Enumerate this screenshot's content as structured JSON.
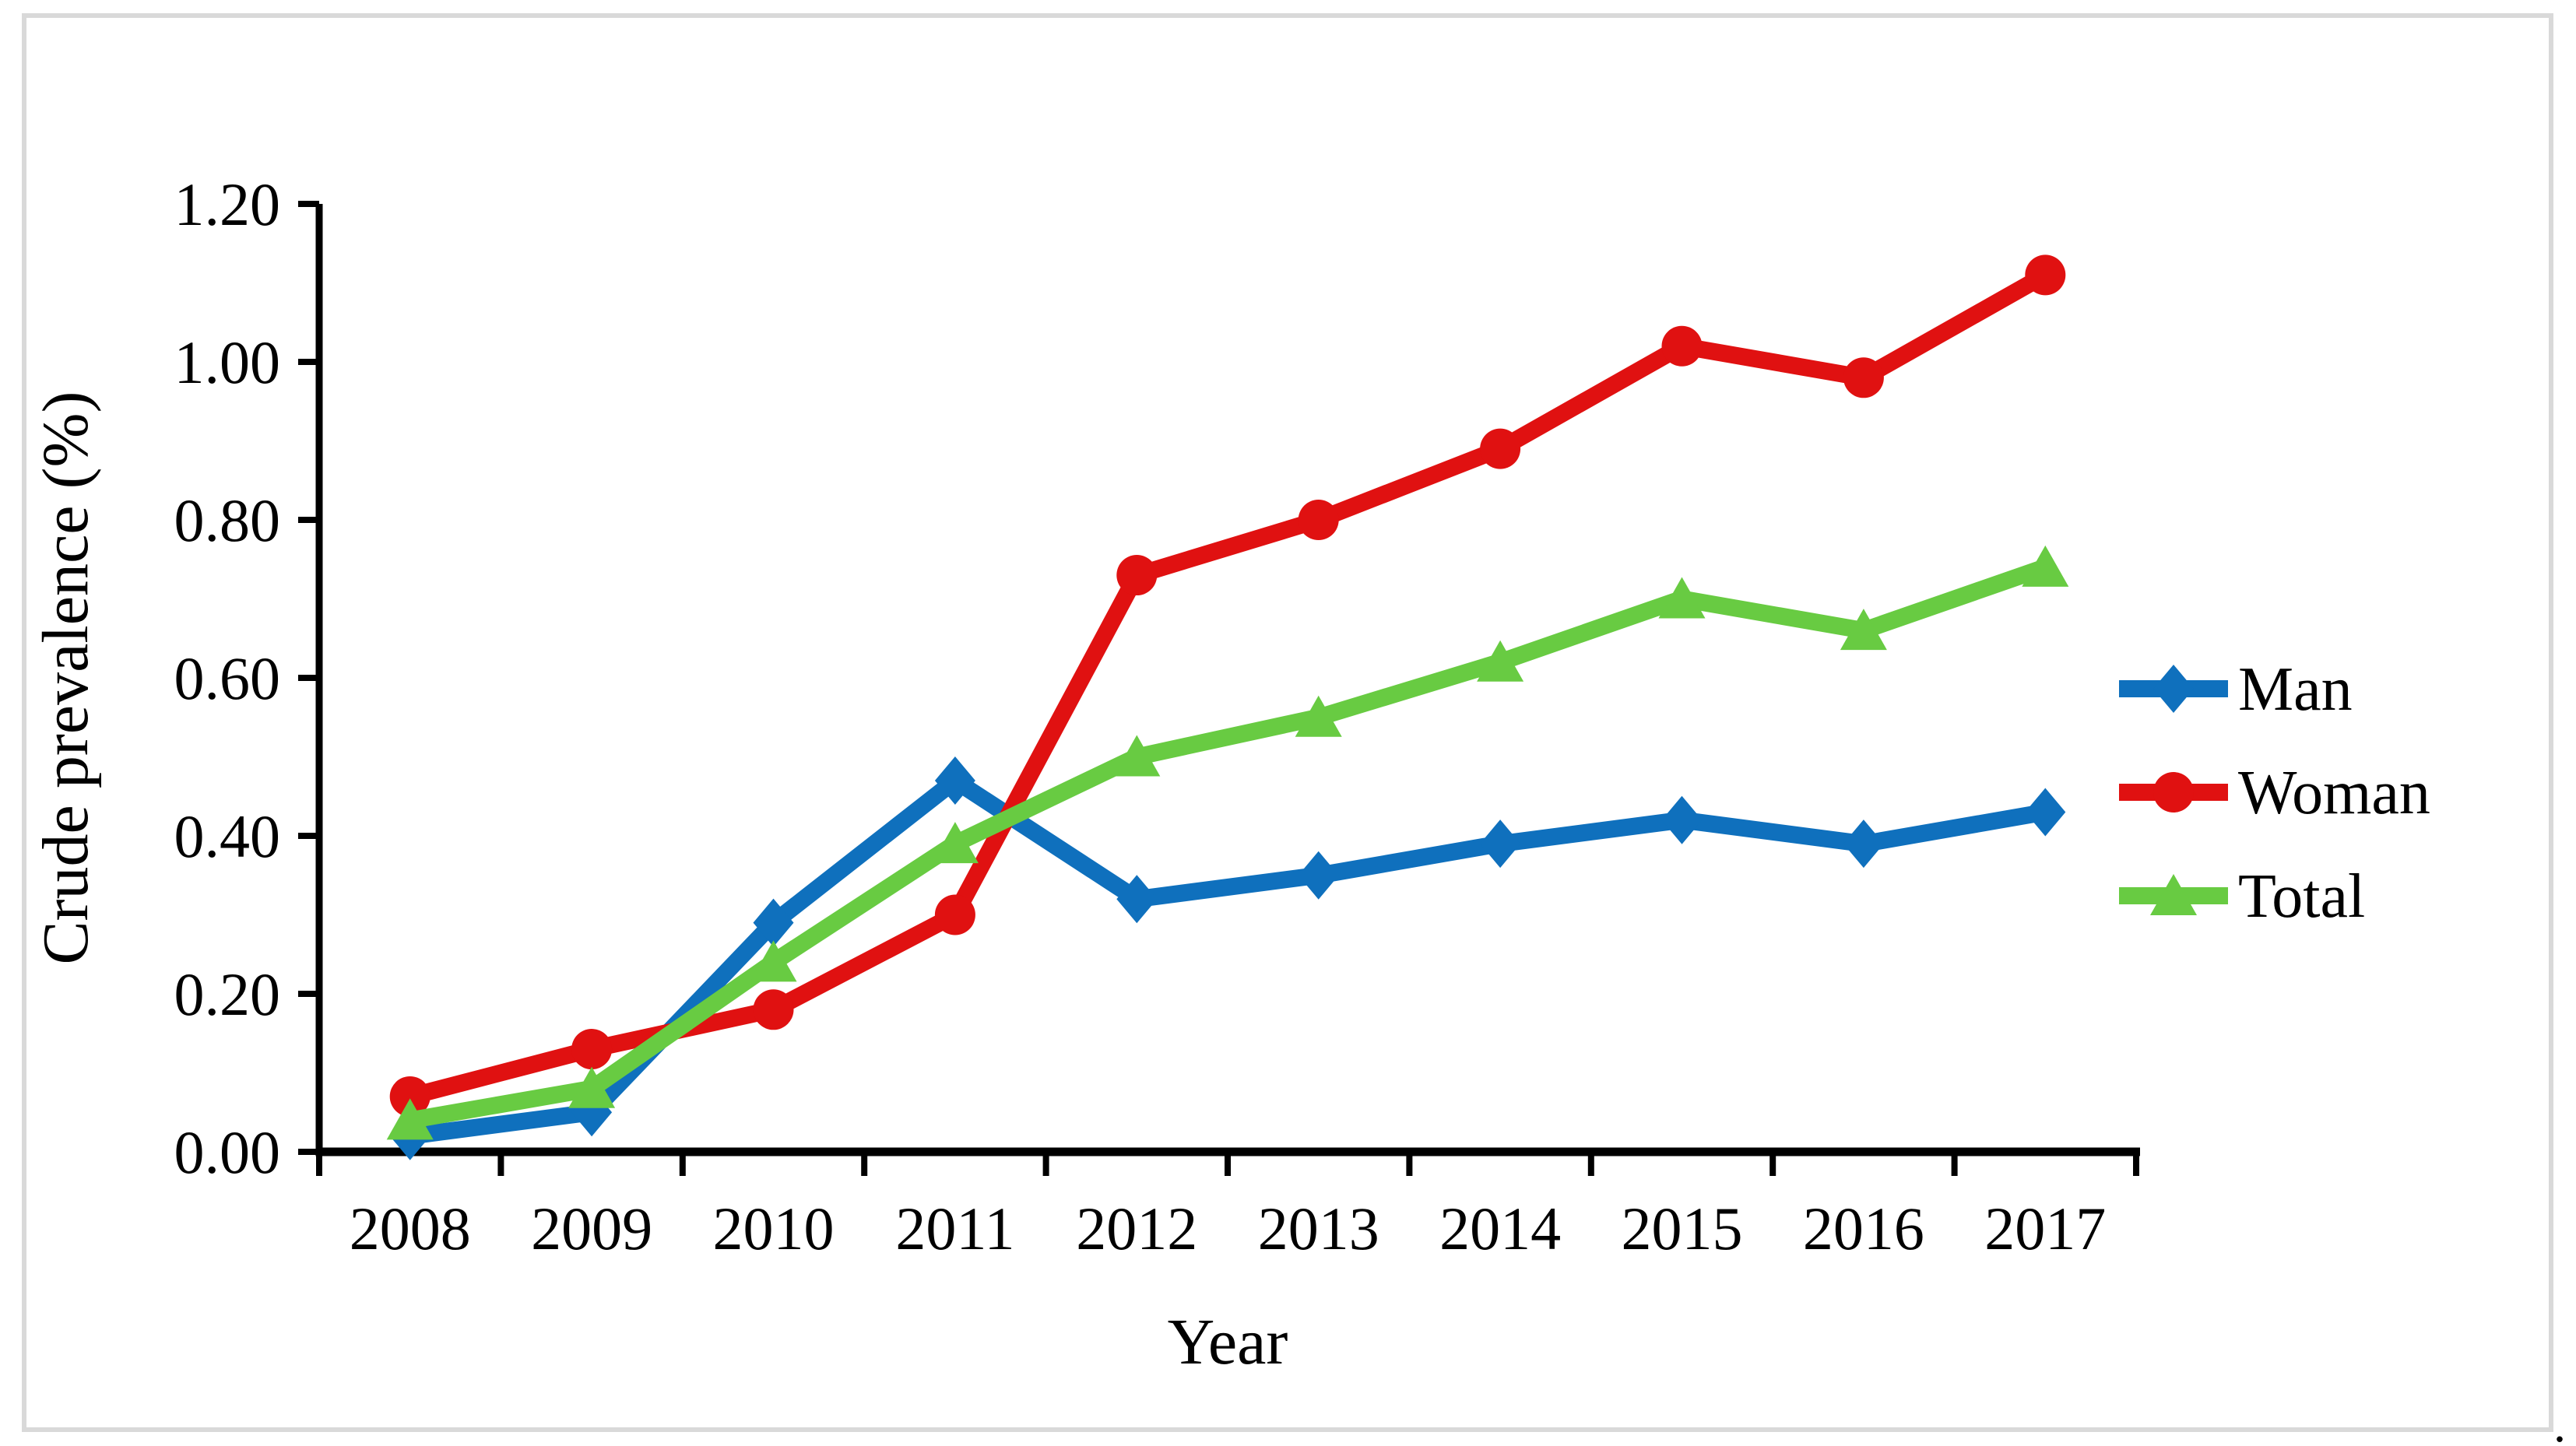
{
  "figure": {
    "background": "#ffffff",
    "border_color": "#d9d9d9",
    "footnote_dot": "."
  },
  "chart_data": {
    "type": "line",
    "title": "",
    "xlabel": "Year",
    "ylabel": "Crude prevalence (%)",
    "categories": [
      "2008",
      "2009",
      "2010",
      "2011",
      "2012",
      "2013",
      "2014",
      "2015",
      "2016",
      "2017"
    ],
    "ylim": [
      0.0,
      1.2
    ],
    "y_ticks": [
      {
        "value": 0.0,
        "label": "0.00"
      },
      {
        "value": 0.2,
        "label": "0.20"
      },
      {
        "value": 0.4,
        "label": "0.40"
      },
      {
        "value": 0.6,
        "label": "0.60"
      },
      {
        "value": 0.8,
        "label": "0.80"
      },
      {
        "value": 1.0,
        "label": "1.00"
      },
      {
        "value": 1.2,
        "label": "1.20"
      }
    ],
    "grid": false,
    "legend_position": "right",
    "series": [
      {
        "name": "Man",
        "color": "#0f70bd",
        "marker": "diamond",
        "values": [
          0.02,
          0.05,
          0.29,
          0.47,
          0.32,
          0.35,
          0.39,
          0.42,
          0.39,
          0.43
        ]
      },
      {
        "name": "Woman",
        "color": "#e01111",
        "marker": "circle",
        "values": [
          0.07,
          0.13,
          0.18,
          0.3,
          0.73,
          0.8,
          0.89,
          1.02,
          0.98,
          1.11
        ]
      },
      {
        "name": "Total",
        "color": "#68cb42",
        "marker": "triangle-up",
        "values": [
          0.04,
          0.08,
          0.24,
          0.39,
          0.5,
          0.55,
          0.62,
          0.7,
          0.66,
          0.74
        ]
      }
    ]
  }
}
